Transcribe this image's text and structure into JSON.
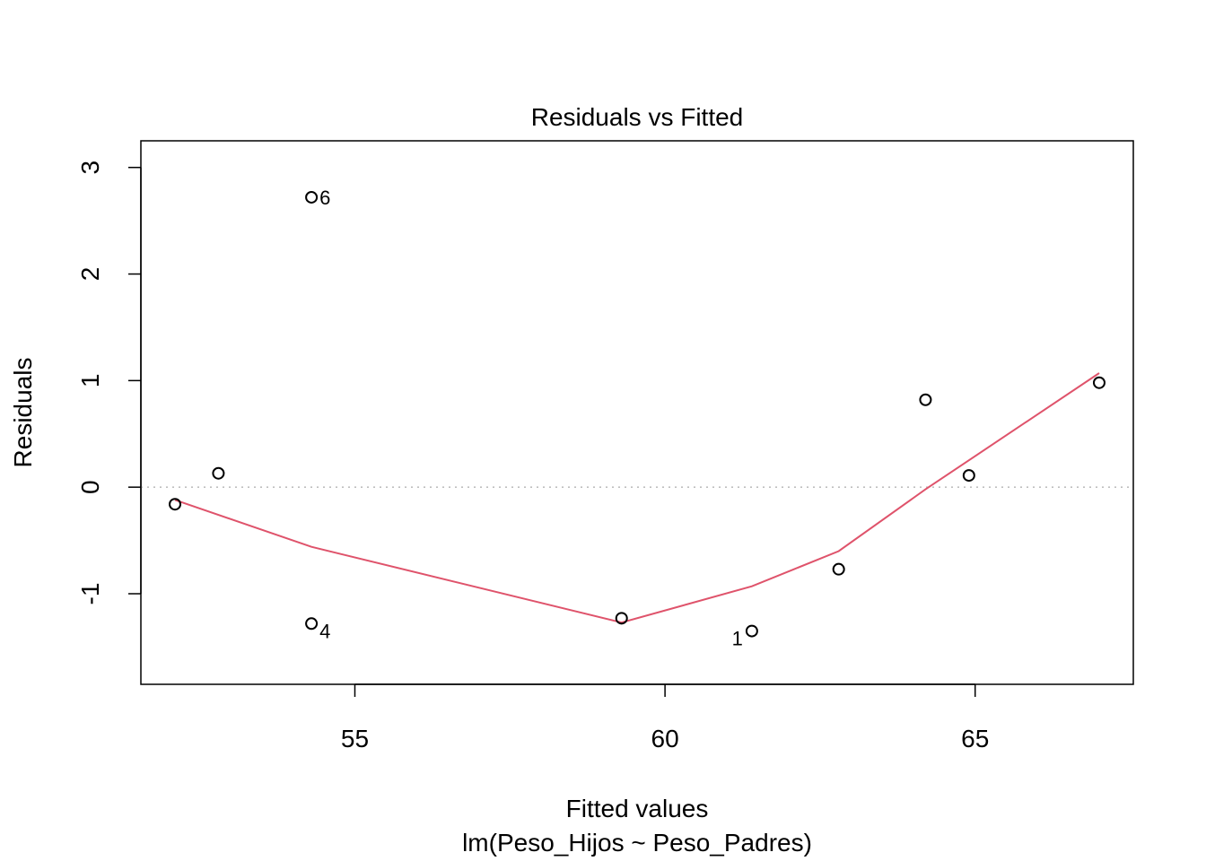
{
  "chart_data": {
    "type": "scatter",
    "title": "Residuals vs Fitted",
    "xlabel": "Fitted values",
    "ylabel": "Residuals",
    "subtitle": "lm(Peso_Hijos ~ Peso_Padres)",
    "xlim": [
      51.55,
      67.55
    ],
    "ylim": [
      -1.85,
      3.25
    ],
    "x_ticks": [
      {
        "value": 55,
        "label": "55"
      },
      {
        "value": 60,
        "label": "60"
      },
      {
        "value": 65,
        "label": "65"
      }
    ],
    "y_ticks": [
      {
        "value": -1,
        "label": "-1"
      },
      {
        "value": 0,
        "label": "0"
      },
      {
        "value": 1,
        "label": "1"
      },
      {
        "value": 2,
        "label": "2"
      },
      {
        "value": 3,
        "label": "3"
      }
    ],
    "points": [
      {
        "x": 52.1,
        "y": -0.16,
        "label": ""
      },
      {
        "x": 52.8,
        "y": 0.13,
        "label": ""
      },
      {
        "x": 54.3,
        "y": 2.72,
        "label": "6"
      },
      {
        "x": 54.3,
        "y": -1.28,
        "label": "4"
      },
      {
        "x": 59.3,
        "y": -1.23,
        "label": ""
      },
      {
        "x": 61.4,
        "y": -1.35,
        "label": "1"
      },
      {
        "x": 62.8,
        "y": -0.77,
        "label": ""
      },
      {
        "x": 64.2,
        "y": 0.82,
        "label": ""
      },
      {
        "x": 64.9,
        "y": 0.11,
        "label": ""
      },
      {
        "x": 67.0,
        "y": 0.98,
        "label": ""
      }
    ],
    "smooth_line": {
      "color": "#DF536B",
      "x": [
        52.1,
        54.3,
        59.3,
        61.4,
        62.8,
        64.2,
        67.0
      ],
      "y": [
        -0.12,
        -0.56,
        -1.27,
        -0.93,
        -0.6,
        -0.02,
        1.07
      ]
    },
    "reference_line": {
      "y": 0,
      "style": "dotted",
      "color": "#bebebe"
    },
    "grid": false
  }
}
